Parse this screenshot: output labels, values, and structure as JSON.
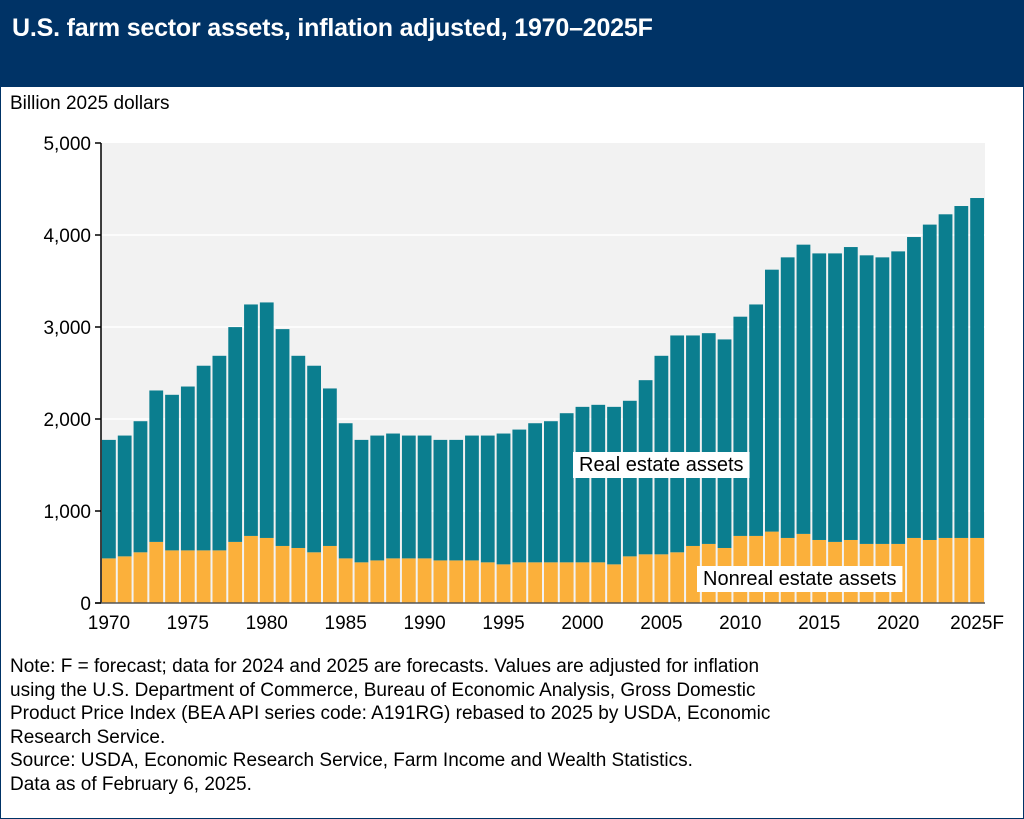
{
  "header": {
    "title": "U.S. farm sector assets, inflation adjusted, 1970–2025F"
  },
  "notes": {
    "lines": [
      "Note: F = forecast; data for 2024 and 2025 are forecasts. Values are adjusted for inflation",
      "using the U.S. Department of Commerce, Bureau of Economic Analysis, Gross Domestic",
      "Product Price Index (BEA API series code: A191RG) rebased to 2025 by USDA, Economic",
      "Research Service.",
      "Source: USDA, Economic Research Service, Farm Income and Wealth Statistics.",
      "Data as of February 6, 2025."
    ]
  },
  "colors": {
    "header_bg": "#003366",
    "real_estate": "#0b7e8f",
    "nonreal_estate": "#fbb03b",
    "plot_bg": "#f2f2f2"
  },
  "chart_data": {
    "type": "bar",
    "stacked": true,
    "title": "U.S. farm sector assets, inflation adjusted, 1970–2025F",
    "ylabel": "Billion 2025 dollars",
    "xlabel": "",
    "ylim": [
      0,
      5000
    ],
    "yticks": [
      0,
      1000,
      2000,
      3000,
      4000,
      5000
    ],
    "ytick_labels": [
      "0",
      "1,000",
      "2,000",
      "3,000",
      "4,000",
      "5,000"
    ],
    "xtick_labels": [
      "1970",
      "1975",
      "1980",
      "1985",
      "1990",
      "1995",
      "2000",
      "2005",
      "2010",
      "2015",
      "2020",
      "2025F"
    ],
    "grid": true,
    "categories": [
      1970,
      1971,
      1972,
      1973,
      1974,
      1975,
      1976,
      1977,
      1978,
      1979,
      1980,
      1981,
      1982,
      1983,
      1984,
      1985,
      1986,
      1987,
      1988,
      1989,
      1990,
      1991,
      1992,
      1993,
      1994,
      1995,
      1996,
      1997,
      1998,
      1999,
      2000,
      2001,
      2002,
      2003,
      2004,
      2005,
      2006,
      2007,
      2008,
      2009,
      2010,
      2011,
      2012,
      2013,
      2014,
      2015,
      2016,
      2017,
      2018,
      2019,
      2020,
      2021,
      2022,
      2023,
      2024,
      2025
    ],
    "series": [
      {
        "name": "Nonreal estate assets",
        "values": [
          485,
          507,
          551,
          664,
          572,
          572,
          572,
          572,
          664,
          729,
          707,
          620,
          598,
          551,
          620,
          485,
          442,
          463,
          485,
          485,
          485,
          463,
          463,
          463,
          442,
          420,
          442,
          442,
          442,
          442,
          442,
          442,
          420,
          507,
          529,
          529,
          551,
          620,
          642,
          598,
          729,
          729,
          776,
          707,
          751,
          685,
          664,
          685,
          642,
          642,
          642,
          707,
          685,
          707,
          707,
          707
        ]
      },
      {
        "name": "Real estate assets",
        "values": [
          1288,
          1313,
          1425,
          1646,
          1691,
          1781,
          2007,
          2115,
          2335,
          2516,
          2560,
          2357,
          2089,
          2028,
          1712,
          1469,
          1331,
          1357,
          1357,
          1335,
          1335,
          1310,
          1310,
          1357,
          1378,
          1422,
          1443,
          1512,
          1534,
          1621,
          1690,
          1712,
          1712,
          1691,
          1893,
          2158,
          2357,
          2288,
          2291,
          2267,
          2383,
          2516,
          2847,
          3050,
          3144,
          3115,
          3136,
          3184,
          3137,
          3115,
          3180,
          3271,
          3428,
          3518,
          3608,
          3695
        ]
      }
    ],
    "totals": [
      1773,
      1820,
      1976,
      2310,
      2263,
      2353,
      2579,
      2687,
      2999,
      3245,
      3267,
      2977,
      2687,
      2579,
      2332,
      1954,
      1773,
      1820,
      1842,
      1820,
      1820,
      1773,
      1773,
      1820,
      1820,
      1842,
      1885,
      1954,
      1976,
      2063,
      2132,
      2154,
      2132,
      2198,
      2422,
      2687,
      2908,
      2908,
      2933,
      2865,
      3112,
      3245,
      3623,
      3757,
      3895,
      3800,
      3800,
      3869,
      3779,
      3757,
      3822,
      3978,
      4113,
      4225,
      4315,
      4402
    ],
    "annotations": [
      "Real estate assets",
      "Nonreal estate assets"
    ]
  }
}
